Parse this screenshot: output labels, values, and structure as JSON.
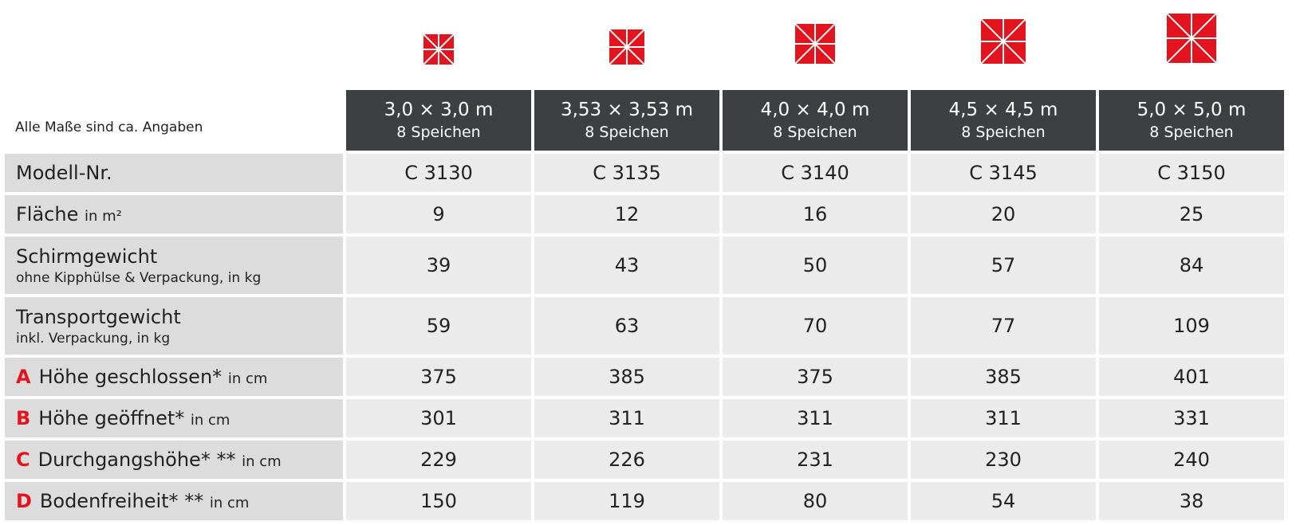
{
  "header": {
    "note": "Alle Maße sind ca. Angaben"
  },
  "columns": [
    {
      "size": "3,0 × 3,0 m",
      "spokes": "8 Speichen"
    },
    {
      "size": "3,53 × 3,53 m",
      "spokes": "8 Speichen"
    },
    {
      "size": "4,0 × 4,0 m",
      "spokes": "8 Speichen"
    },
    {
      "size": "4,5 × 4,5 m",
      "spokes": "8 Speichen"
    },
    {
      "size": "5,0 × 5,0 m",
      "spokes": "8 Speichen"
    }
  ],
  "rows": [
    {
      "label": "Modell-Nr.",
      "values": [
        "C 3130",
        "C 3135",
        "C 3140",
        "C 3145",
        "C 3150"
      ]
    },
    {
      "label": "Fläche",
      "unit": "in m²",
      "values": [
        9,
        12,
        16,
        20,
        25
      ]
    },
    {
      "label": "Schirmgewicht",
      "sub": "ohne Kipphülse & Verpackung, in kg",
      "values": [
        39,
        43,
        50,
        57,
        84
      ]
    },
    {
      "label": "Transportgewicht",
      "sub": "inkl. Verpackung, in kg",
      "values": [
        59,
        63,
        70,
        77,
        109
      ]
    },
    {
      "letter": "A",
      "label": "Höhe geschlossen*",
      "unit": "in cm",
      "values": [
        375,
        385,
        375,
        385,
        401
      ]
    },
    {
      "letter": "B",
      "label": "Höhe geöffnet*",
      "unit": "in cm",
      "values": [
        301,
        311,
        311,
        311,
        331
      ]
    },
    {
      "letter": "C",
      "label": "Durchgangshöhe* **",
      "unit": "in cm",
      "values": [
        229,
        226,
        231,
        230,
        240
      ]
    },
    {
      "letter": "D",
      "label": "Bodenfreiheit* **",
      "unit": "in cm",
      "values": [
        150,
        119,
        80,
        54,
        38
      ]
    }
  ]
}
